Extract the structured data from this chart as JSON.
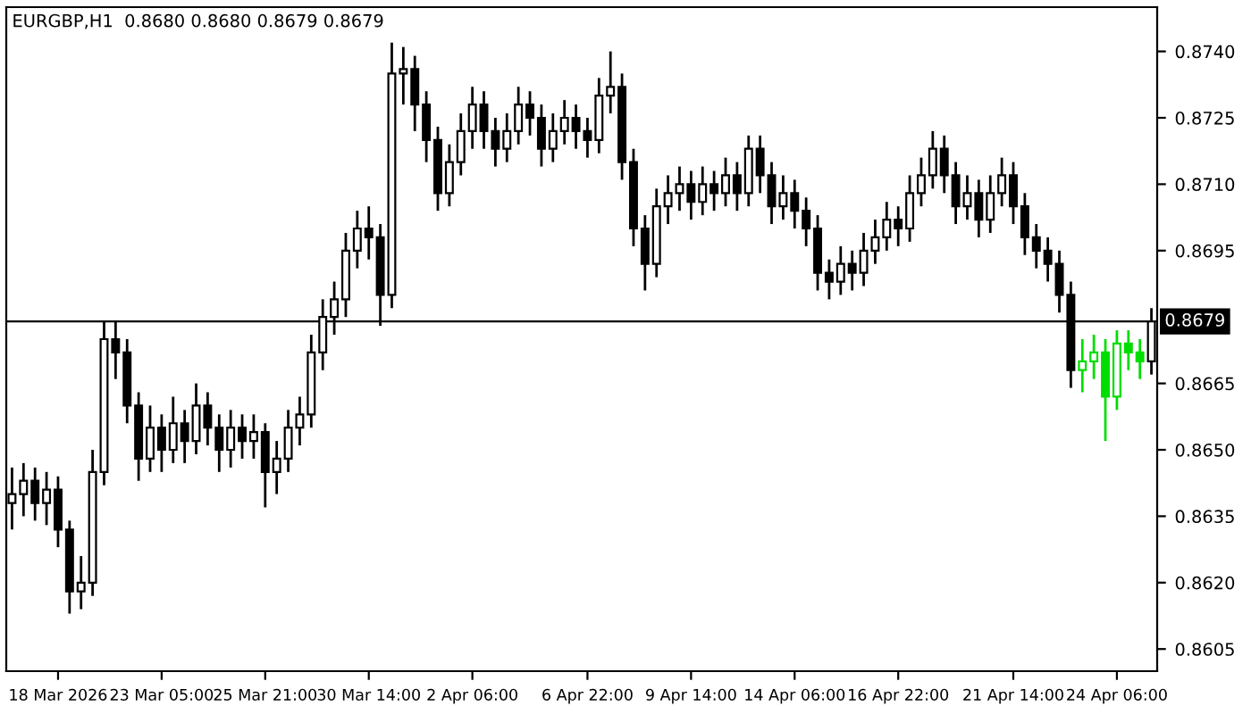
{
  "chart_data": {
    "type": "candlestick",
    "title": "EURGBP,H1  0.8680 0.8680 0.8679 0.8679",
    "categories": [
      null,
      null,
      null,
      null,
      "18 Mar 2026",
      null,
      null,
      null,
      null,
      null,
      null,
      null,
      null,
      "23 Mar 05:00",
      null,
      null,
      null,
      null,
      null,
      null,
      null,
      null,
      "25 Mar 21:00",
      null,
      null,
      null,
      null,
      null,
      null,
      null,
      null,
      "30 Mar 14:00",
      null,
      null,
      null,
      null,
      null,
      null,
      null,
      null,
      "2 Apr 06:00",
      null,
      null,
      null,
      null,
      null,
      null,
      null,
      null,
      null,
      "6 Apr 22:00",
      null,
      null,
      null,
      null,
      null,
      null,
      null,
      null,
      "9 Apr 14:00",
      null,
      null,
      null,
      null,
      null,
      null,
      null,
      null,
      "14 Apr 06:00",
      null,
      null,
      null,
      null,
      null,
      null,
      null,
      null,
      "16 Apr 22:00",
      null,
      null,
      null,
      null,
      null,
      null,
      null,
      null,
      null,
      "21 Apr 14:00",
      null,
      null,
      null,
      null,
      null,
      null,
      null,
      null,
      "24 Apr 06:00",
      null,
      null,
      null
    ],
    "ohlc": [
      [
        0.8638,
        0.8646,
        0.8632,
        0.864
      ],
      [
        0.864,
        0.8647,
        0.8635,
        0.8643
      ],
      [
        0.8643,
        0.8646,
        0.8634,
        0.8638
      ],
      [
        0.8638,
        0.8645,
        0.8633,
        0.8641
      ],
      [
        0.8641,
        0.8644,
        0.8628,
        0.8632
      ],
      [
        0.8632,
        0.8634,
        0.8613,
        0.8618
      ],
      [
        0.8618,
        0.8626,
        0.8614,
        0.862
      ],
      [
        0.862,
        0.865,
        0.8617,
        0.8645
      ],
      [
        0.8645,
        0.8679,
        0.8642,
        0.8675
      ],
      [
        0.8675,
        0.8679,
        0.8666,
        0.8672
      ],
      [
        0.8672,
        0.8675,
        0.8656,
        0.866
      ],
      [
        0.866,
        0.8663,
        0.8643,
        0.8648
      ],
      [
        0.8648,
        0.866,
        0.8645,
        0.8655
      ],
      [
        0.8655,
        0.8658,
        0.8645,
        0.865
      ],
      [
        0.865,
        0.8662,
        0.8647,
        0.8656
      ],
      [
        0.8656,
        0.8659,
        0.8647,
        0.8652
      ],
      [
        0.8652,
        0.8665,
        0.8649,
        0.866
      ],
      [
        0.866,
        0.8663,
        0.8651,
        0.8655
      ],
      [
        0.8655,
        0.8658,
        0.8645,
        0.865
      ],
      [
        0.865,
        0.8659,
        0.8646,
        0.8655
      ],
      [
        0.8655,
        0.8658,
        0.8648,
        0.8652
      ],
      [
        0.8652,
        0.8658,
        0.8648,
        0.8654
      ],
      [
        0.8654,
        0.8656,
        0.8637,
        0.8645
      ],
      [
        0.8645,
        0.8652,
        0.864,
        0.8648
      ],
      [
        0.8648,
        0.8659,
        0.8645,
        0.8655
      ],
      [
        0.8655,
        0.8662,
        0.8651,
        0.8658
      ],
      [
        0.8658,
        0.8676,
        0.8655,
        0.8672
      ],
      [
        0.8672,
        0.8684,
        0.8668,
        0.868
      ],
      [
        0.868,
        0.8688,
        0.8676,
        0.8684
      ],
      [
        0.8684,
        0.8699,
        0.868,
        0.8695
      ],
      [
        0.8695,
        0.8704,
        0.8691,
        0.87
      ],
      [
        0.87,
        0.8705,
        0.8693,
        0.8698
      ],
      [
        0.8698,
        0.8701,
        0.8678,
        0.8685
      ],
      [
        0.8685,
        0.8742,
        0.8682,
        0.8735
      ],
      [
        0.8735,
        0.8741,
        0.8728,
        0.8736
      ],
      [
        0.8736,
        0.8739,
        0.8722,
        0.8728
      ],
      [
        0.8728,
        0.8731,
        0.8715,
        0.872
      ],
      [
        0.872,
        0.8723,
        0.8704,
        0.8708
      ],
      [
        0.8708,
        0.8719,
        0.8705,
        0.8715
      ],
      [
        0.8715,
        0.8726,
        0.8712,
        0.8722
      ],
      [
        0.8722,
        0.8732,
        0.8718,
        0.8728
      ],
      [
        0.8728,
        0.8731,
        0.8718,
        0.8722
      ],
      [
        0.8722,
        0.8725,
        0.8714,
        0.8718
      ],
      [
        0.8718,
        0.8726,
        0.8715,
        0.8722
      ],
      [
        0.8722,
        0.8732,
        0.8719,
        0.8728
      ],
      [
        0.8728,
        0.8731,
        0.8721,
        0.8725
      ],
      [
        0.8725,
        0.8728,
        0.8714,
        0.8718
      ],
      [
        0.8718,
        0.8726,
        0.8715,
        0.8722
      ],
      [
        0.8722,
        0.8729,
        0.8719,
        0.8725
      ],
      [
        0.8725,
        0.8728,
        0.8718,
        0.8722
      ],
      [
        0.8722,
        0.8725,
        0.8716,
        0.872
      ],
      [
        0.872,
        0.8734,
        0.8717,
        0.873
      ],
      [
        0.873,
        0.874,
        0.8726,
        0.8732
      ],
      [
        0.8732,
        0.8735,
        0.8711,
        0.8715
      ],
      [
        0.8715,
        0.8718,
        0.8696,
        0.87
      ],
      [
        0.87,
        0.8703,
        0.8686,
        0.8692
      ],
      [
        0.8692,
        0.8709,
        0.8689,
        0.8705
      ],
      [
        0.8705,
        0.8712,
        0.8701,
        0.8708
      ],
      [
        0.8708,
        0.8714,
        0.8704,
        0.871
      ],
      [
        0.871,
        0.8713,
        0.8702,
        0.8706
      ],
      [
        0.8706,
        0.8714,
        0.8703,
        0.871
      ],
      [
        0.871,
        0.8713,
        0.8704,
        0.8708
      ],
      [
        0.8708,
        0.8716,
        0.8705,
        0.8712
      ],
      [
        0.8712,
        0.8715,
        0.8704,
        0.8708
      ],
      [
        0.8708,
        0.8721,
        0.8705,
        0.8718
      ],
      [
        0.8718,
        0.8721,
        0.8708,
        0.8712
      ],
      [
        0.8712,
        0.8715,
        0.8701,
        0.8705
      ],
      [
        0.8705,
        0.8712,
        0.8702,
        0.8708
      ],
      [
        0.8708,
        0.8711,
        0.87,
        0.8704
      ],
      [
        0.8704,
        0.8707,
        0.8696,
        0.87
      ],
      [
        0.87,
        0.8703,
        0.8686,
        0.869
      ],
      [
        0.869,
        0.8693,
        0.8684,
        0.8688
      ],
      [
        0.8688,
        0.8696,
        0.8685,
        0.8692
      ],
      [
        0.8692,
        0.8695,
        0.8686,
        0.869
      ],
      [
        0.869,
        0.8699,
        0.8687,
        0.8695
      ],
      [
        0.8695,
        0.8702,
        0.8692,
        0.8698
      ],
      [
        0.8698,
        0.8706,
        0.8695,
        0.8702
      ],
      [
        0.8702,
        0.8705,
        0.8696,
        0.87
      ],
      [
        0.87,
        0.8712,
        0.8697,
        0.8708
      ],
      [
        0.8708,
        0.8716,
        0.8705,
        0.8712
      ],
      [
        0.8712,
        0.8722,
        0.8709,
        0.8718
      ],
      [
        0.8718,
        0.8721,
        0.8708,
        0.8712
      ],
      [
        0.8712,
        0.8715,
        0.8701,
        0.8705
      ],
      [
        0.8705,
        0.8712,
        0.8702,
        0.8708
      ],
      [
        0.8708,
        0.8711,
        0.8698,
        0.8702
      ],
      [
        0.8702,
        0.8712,
        0.8699,
        0.8708
      ],
      [
        0.8708,
        0.8716,
        0.8705,
        0.8712
      ],
      [
        0.8712,
        0.8715,
        0.8701,
        0.8705
      ],
      [
        0.8705,
        0.8708,
        0.8694,
        0.8698
      ],
      [
        0.8698,
        0.8701,
        0.8691,
        0.8695
      ],
      [
        0.8695,
        0.8698,
        0.8688,
        0.8692
      ],
      [
        0.8692,
        0.8695,
        0.8681,
        0.8685
      ],
      [
        0.8685,
        0.8688,
        0.8664,
        0.8668
      ],
      [
        0.8668,
        0.8675,
        0.8663,
        0.867
      ],
      [
        0.867,
        0.8676,
        0.8666,
        0.8672
      ],
      [
        0.8672,
        0.8675,
        0.8652,
        0.8662
      ],
      [
        0.8662,
        0.8677,
        0.8659,
        0.8674
      ],
      [
        0.8674,
        0.8677,
        0.8668,
        0.8672
      ],
      [
        0.8672,
        0.8675,
        0.8666,
        0.867
      ],
      [
        0.867,
        0.8682,
        0.8667,
        0.8679
      ]
    ],
    "colors": [
      "#000000",
      "#000000",
      "#000000",
      "#000000",
      "#000000",
      "#000000",
      "#000000",
      "#000000",
      "#000000",
      "#000000",
      "#000000",
      "#000000",
      "#000000",
      "#000000",
      "#000000",
      "#000000",
      "#000000",
      "#000000",
      "#000000",
      "#000000",
      "#000000",
      "#000000",
      "#000000",
      "#000000",
      "#000000",
      "#000000",
      "#000000",
      "#000000",
      "#000000",
      "#000000",
      "#000000",
      "#000000",
      "#000000",
      "#000000",
      "#000000",
      "#000000",
      "#000000",
      "#000000",
      "#000000",
      "#000000",
      "#000000",
      "#000000",
      "#000000",
      "#000000",
      "#000000",
      "#000000",
      "#000000",
      "#000000",
      "#000000",
      "#000000",
      "#000000",
      "#000000",
      "#000000",
      "#000000",
      "#000000",
      "#000000",
      "#000000",
      "#000000",
      "#000000",
      "#000000",
      "#000000",
      "#000000",
      "#000000",
      "#000000",
      "#000000",
      "#000000",
      "#000000",
      "#000000",
      "#000000",
      "#000000",
      "#000000",
      "#000000",
      "#000000",
      "#000000",
      "#000000",
      "#000000",
      "#000000",
      "#000000",
      "#000000",
      "#000000",
      "#000000",
      "#000000",
      "#000000",
      "#000000",
      "#000000",
      "#000000",
      "#000000",
      "#000000",
      "#000000",
      "#000000",
      "#000000",
      "#000000",
      "#000000",
      "#00dd00",
      "#00dd00",
      "#00dd00",
      "#00dd00",
      "#00dd00",
      "#00dd00",
      "#000000"
    ],
    "ylim": [
      0.86,
      0.875
    ],
    "yticks": [
      {
        "value": 0.8605,
        "label": "0.8605"
      },
      {
        "value": 0.862,
        "label": "0.8620"
      },
      {
        "value": 0.8635,
        "label": "0.8635"
      },
      {
        "value": 0.865,
        "label": "0.8650"
      },
      {
        "value": 0.8665,
        "label": "0.8665"
      },
      {
        "value": 0.8695,
        "label": "0.8695"
      },
      {
        "value": 0.871,
        "label": "0.8710"
      },
      {
        "value": 0.8725,
        "label": "0.8725"
      },
      {
        "value": 0.874,
        "label": "0.8740"
      }
    ],
    "ref_lines": [
      {
        "axis": "y",
        "value": 0.8679,
        "label": "0.8679",
        "color": "#000000"
      }
    ]
  }
}
